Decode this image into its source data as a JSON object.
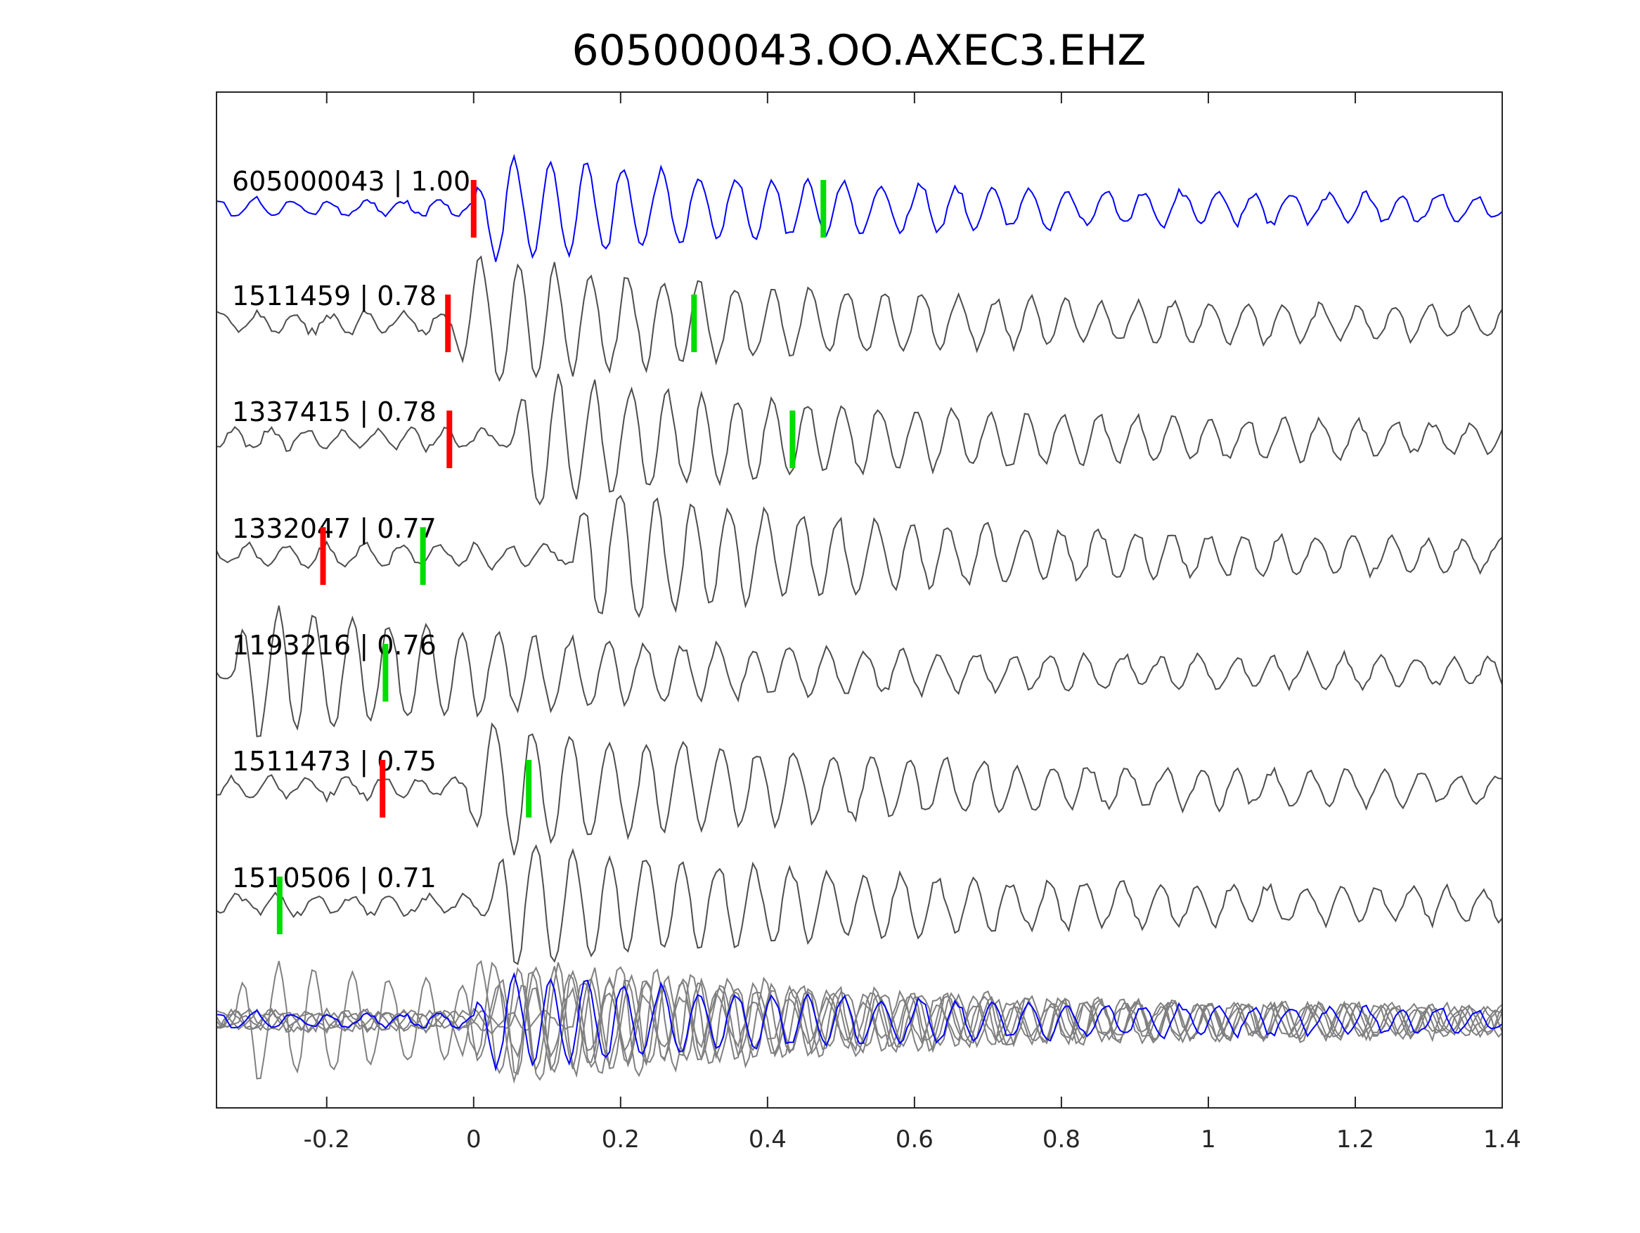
{
  "chart_data": {
    "type": "line",
    "title": "605000043.OO.AXEC3.EHZ",
    "xlabel": "",
    "ylabel": "",
    "xlim": [
      -0.35,
      1.4
    ],
    "xticks": [
      -0.2,
      0,
      0.2,
      0.4,
      0.6,
      0.8,
      1,
      1.2,
      1.4
    ],
    "xtick_labels": [
      "-0.2",
      "0",
      "0.2",
      "0.4",
      "0.6",
      "0.8",
      "1",
      "1.2",
      "1.4"
    ],
    "grid": false,
    "colors": {
      "master": "#0000ff",
      "trace": "#4d4d4d",
      "stack": "#808080",
      "p_pick": "#ff0000",
      "s_pick": "#00dd00"
    },
    "traces": [
      {
        "label": "605000043 | 1.00",
        "id": "605000043",
        "cc": 1.0,
        "p_pick": 0.0,
        "s_pick": 0.476,
        "onset": 0.0,
        "master": true
      },
      {
        "label": "1511459 | 0.78",
        "id": "1511459",
        "cc": 0.78,
        "p_pick": -0.035,
        "s_pick": 0.3,
        "onset": -0.03
      },
      {
        "label": "1337415 | 0.78",
        "id": "1337415",
        "cc": 0.78,
        "p_pick": -0.033,
        "s_pick": 0.434,
        "onset": 0.05
      },
      {
        "label": "1332047 | 0.77",
        "id": "1332047",
        "cc": 0.77,
        "p_pick": -0.205,
        "s_pick": -0.069,
        "onset": 0.13
      },
      {
        "label": "1193216 | 0.76",
        "id": "1193216",
        "cc": 0.76,
        "p_pick": null,
        "s_pick": -0.12,
        "onset": -0.33
      },
      {
        "label": "1511473 | 0.75",
        "id": "1511473",
        "cc": 0.75,
        "p_pick": -0.124,
        "s_pick": 0.075,
        "onset": -0.01
      },
      {
        "label": "1510506 | 0.71",
        "id": "1510506",
        "cc": 0.71,
        "p_pick": null,
        "s_pick": -0.264,
        "onset": 0.02
      }
    ],
    "stack": {
      "label": "",
      "description_series": "overlay of all traces, master in blue"
    }
  }
}
